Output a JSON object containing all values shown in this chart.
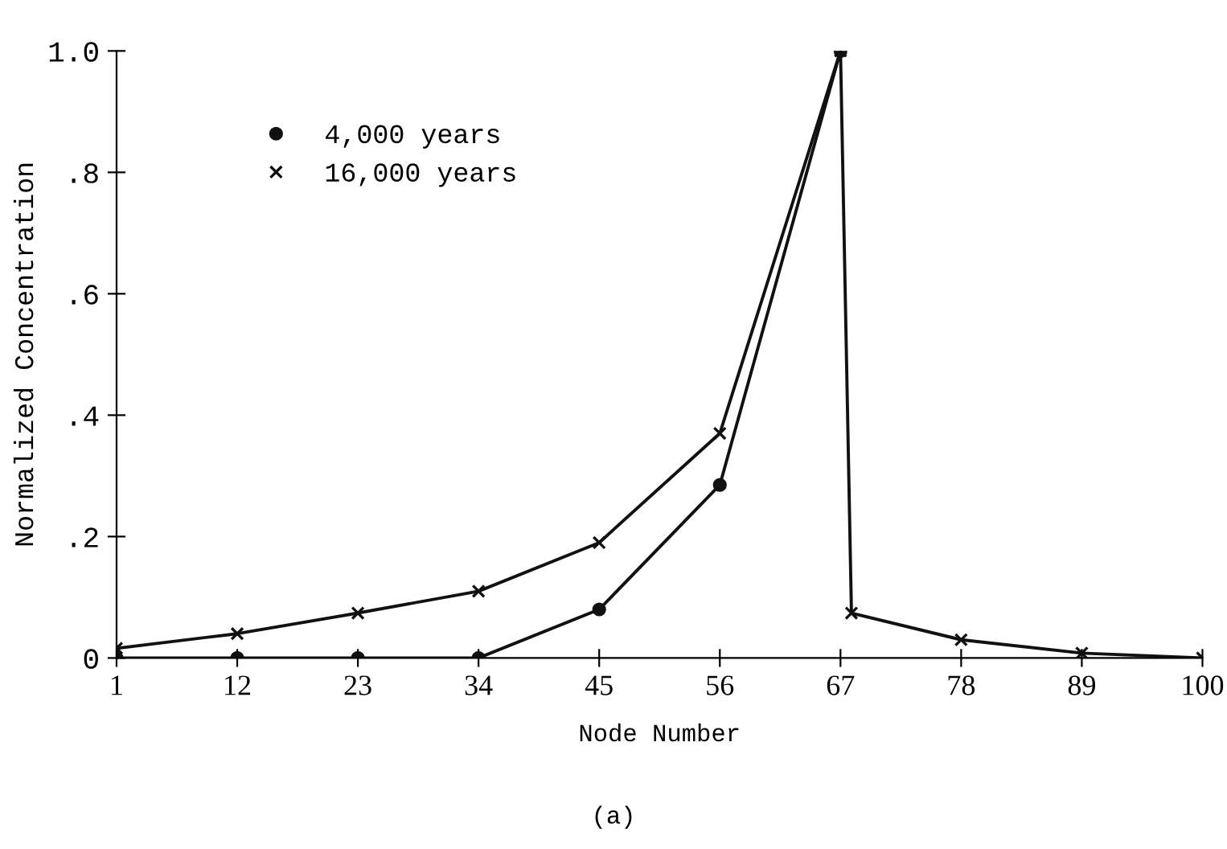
{
  "chart_data": {
    "type": "line",
    "xlabel": "Node Number",
    "ylabel": "Normalized Concentration",
    "annotations": [
      "(a)"
    ],
    "x": [
      1,
      12,
      23,
      34,
      45,
      56,
      67
    ],
    "series": [
      {
        "name": "4,000 years",
        "color": "#111111",
        "marker": "circle",
        "values": [
          0,
          0,
          0,
          0,
          0.08,
          0.285,
          1.0
        ]
      },
      {
        "name": "16,000 years",
        "color": "#111111",
        "marker": "cross",
        "x": [
          1,
          12,
          23,
          34,
          45,
          56,
          67,
          68,
          78,
          89,
          100
        ],
        "values": [
          0.016,
          0.04,
          0.074,
          0.11,
          0.19,
          0.37,
          1.0,
          0.074,
          0.03,
          0.008,
          0
        ]
      }
    ],
    "xlim": [
      1,
      100
    ],
    "ylim": [
      0,
      1.0
    ],
    "xticks": [
      1,
      12,
      23,
      34,
      45,
      56,
      67,
      78,
      89,
      100
    ],
    "yticks": [
      0,
      {
        "value": 0.2,
        "label": ".2"
      },
      {
        "value": 0.4,
        "label": ".4"
      },
      {
        "value": 0.6,
        "label": ".6"
      },
      {
        "value": 0.8,
        "label": ".8"
      },
      {
        "value": 1.0,
        "label": "1.0"
      }
    ],
    "grid": false,
    "legend": "top left",
    "line_style": "solid"
  }
}
